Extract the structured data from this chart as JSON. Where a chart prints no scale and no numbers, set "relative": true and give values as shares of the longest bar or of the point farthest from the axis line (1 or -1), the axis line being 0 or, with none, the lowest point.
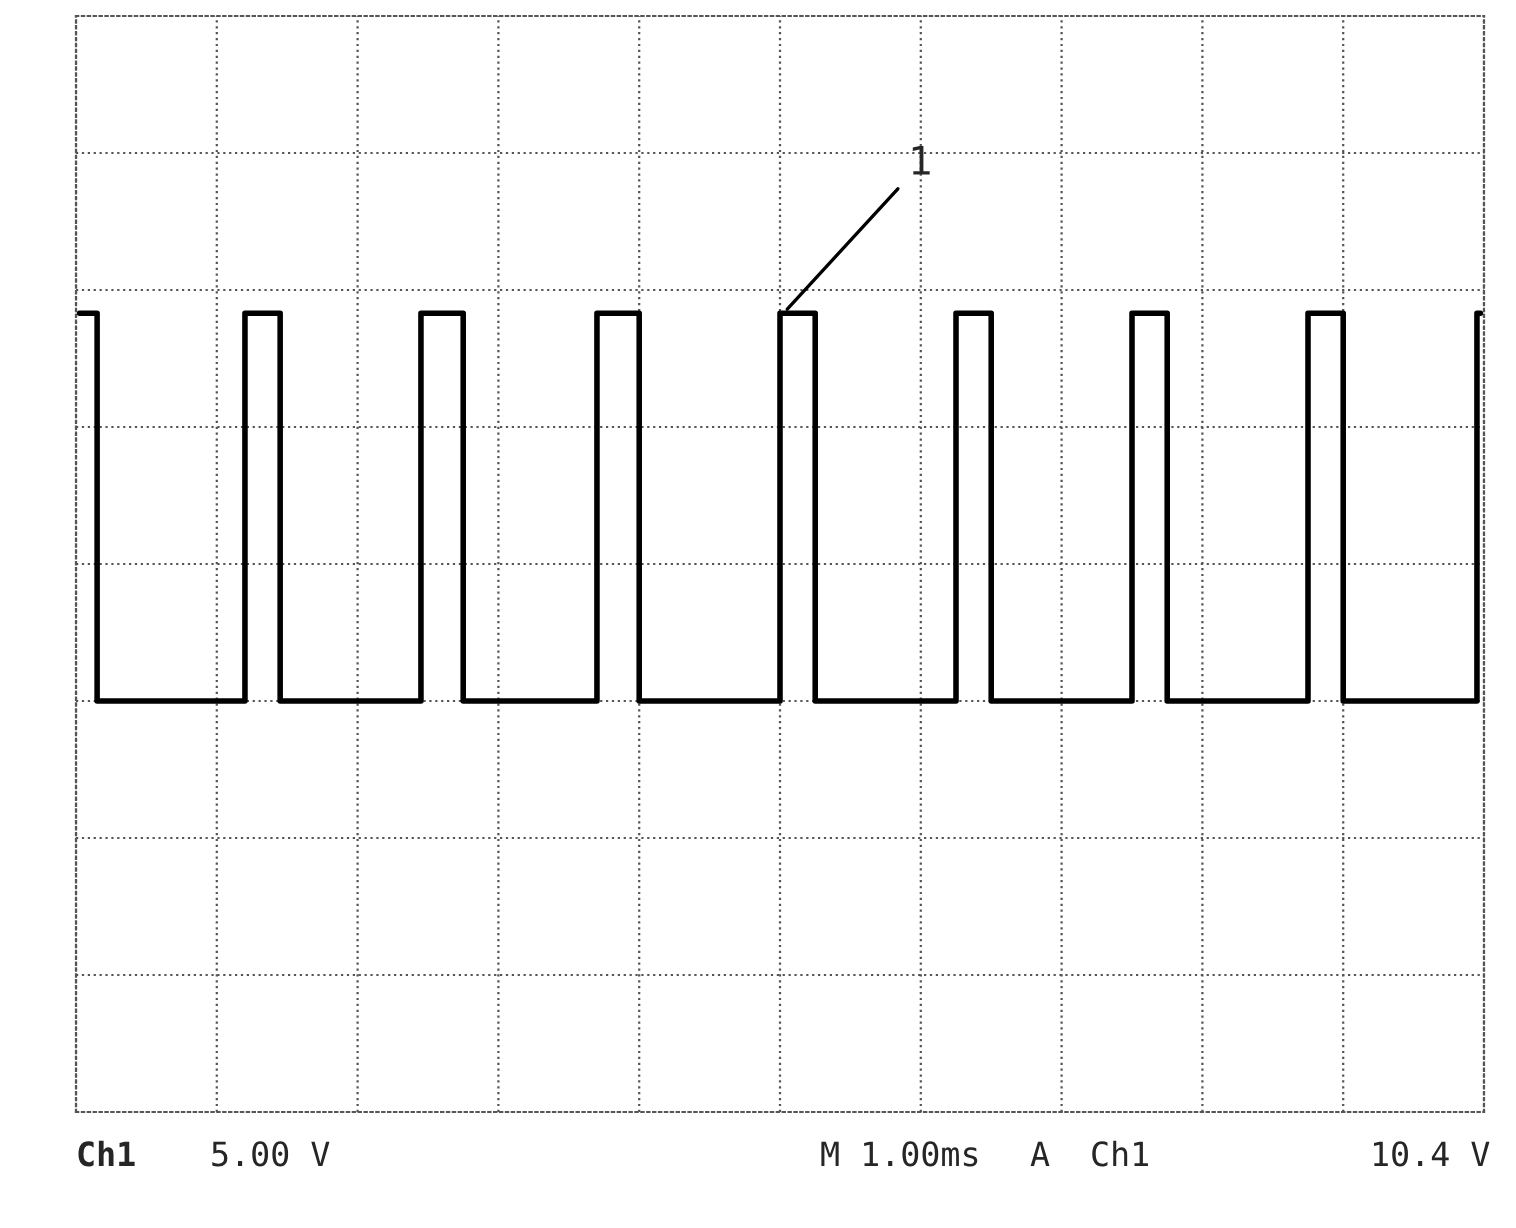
{
  "chart_data": {
    "type": "step",
    "relative": true,
    "grid": true,
    "tick_labels": false,
    "legend": false,
    "marker": "none",
    "line_style": "solid",
    "categories": [
      null,
      null,
      null,
      null,
      null,
      null,
      null,
      null,
      null,
      null,
      null,
      null,
      null,
      null,
      null,
      null,
      null,
      null,
      null,
      null,
      null,
      null,
      null,
      null,
      null,
      null,
      null,
      null,
      null,
      null,
      null,
      null,
      null,
      null,
      null,
      null,
      null,
      null,
      null,
      null,
      null,
      null,
      null,
      null,
      null,
      null,
      null,
      null,
      null,
      null,
      null,
      null,
      null,
      null,
      null,
      null,
      null,
      null,
      null,
      null,
      null,
      null,
      null,
      null,
      null,
      null,
      null,
      null,
      null,
      null,
      null,
      null,
      null,
      null,
      null,
      null,
      null,
      null,
      null,
      null,
      null,
      null,
      null,
      null,
      null,
      null,
      null,
      null,
      null,
      null,
      null,
      null,
      null,
      null,
      null,
      null,
      null,
      null,
      null,
      null,
      null,
      null,
      null,
      null,
      null,
      null,
      null,
      null,
      null,
      null,
      null,
      null,
      null,
      null,
      null,
      null,
      null,
      null,
      null,
      null,
      null,
      null,
      null,
      null,
      null,
      null,
      null,
      null,
      null,
      null,
      null,
      null,
      null,
      null,
      null,
      null,
      null,
      null,
      null,
      null,
      null,
      null,
      null,
      null,
      null,
      null,
      null,
      null,
      null,
      null,
      null,
      null,
      null,
      null,
      null,
      null,
      null,
      null,
      null,
      null,
      null,
      null,
      null,
      null,
      null,
      null,
      null,
      null,
      null,
      null,
      null,
      null,
      null,
      null,
      null,
      null,
      null,
      null,
      null,
      null,
      null,
      null,
      null,
      null,
      null,
      null,
      null,
      null,
      null,
      null,
      null,
      null,
      null,
      null,
      null,
      null,
      null,
      null,
      null,
      null
    ],
    "series": [
      {
        "color": "#000000",
        "values": [
          1,
          1,
          1,
          0,
          0,
          0,
          0,
          0,
          0,
          0,
          0,
          0,
          0,
          0,
          0,
          0,
          0,
          0,
          0,
          0,
          0,
          0,
          0,
          0,
          1,
          1,
          1,
          1,
          1,
          0,
          0,
          0,
          0,
          0,
          0,
          0,
          0,
          0,
          0,
          0,
          0,
          0,
          0,
          0,
          0,
          0,
          0,
          0,
          0,
          1,
          1,
          1,
          1,
          1,
          1,
          0,
          0,
          0,
          0,
          0,
          0,
          0,
          0,
          0,
          0,
          0,
          0,
          0,
          0,
          0,
          0,
          0,
          0,
          0,
          1,
          1,
          1,
          1,
          1,
          1,
          0,
          0,
          0,
          0,
          0,
          0,
          0,
          0,
          0,
          0,
          0,
          0,
          0,
          0,
          0,
          0,
          0,
          0,
          0,
          0,
          1,
          1,
          1,
          1,
          1,
          0,
          0,
          0,
          0,
          0,
          0,
          0,
          0,
          0,
          0,
          0,
          0,
          0,
          0,
          0,
          0,
          0,
          0,
          0,
          0,
          1,
          1,
          1,
          1,
          1,
          0,
          0,
          0,
          0,
          0,
          0,
          0,
          0,
          0,
          0,
          0,
          0,
          0,
          0,
          0,
          0,
          0,
          0,
          0,
          0,
          1,
          1,
          1,
          1,
          1,
          0,
          0,
          0,
          0,
          0,
          0,
          0,
          0,
          0,
          0,
          0,
          0,
          0,
          0,
          0,
          0,
          0,
          0,
          0,
          0,
          1,
          1,
          1,
          1,
          1,
          0,
          0,
          0,
          0,
          0,
          0,
          0,
          0,
          0,
          0,
          0,
          0,
          0,
          0,
          0,
          0,
          0,
          0,
          0,
          1
        ]
      }
    ],
    "annotations": [
      "1",
      "Ch1",
      "5.00 V",
      "M 1.00ms",
      "A",
      "Ch1",
      "10.4 V"
    ]
  }
}
